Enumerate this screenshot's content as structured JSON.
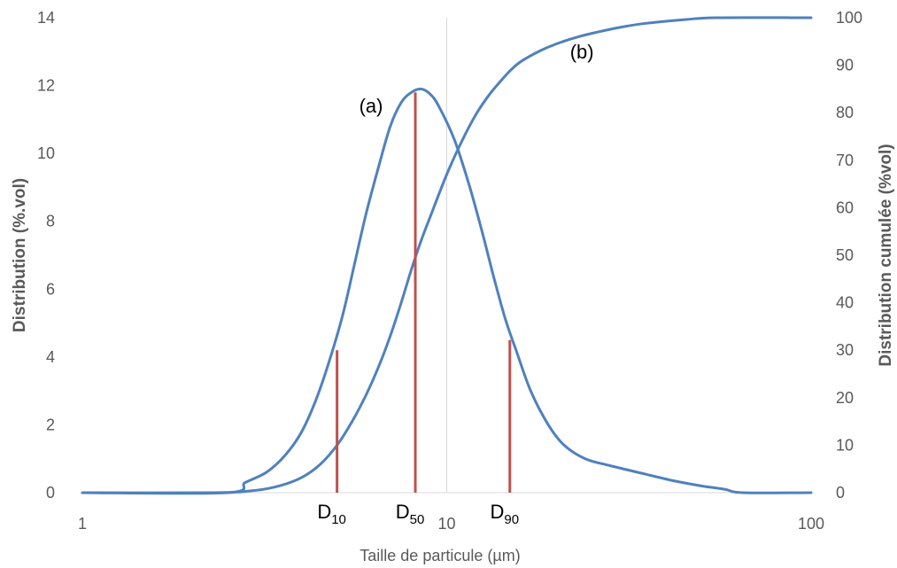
{
  "chart_data": {
    "type": "line",
    "xlabel": "Taille de particule (µm)",
    "ylabel": "Distribution  (%.vol)",
    "y2label": "Distribution cumulée (%vol)",
    "x_scale": "log",
    "xlim": [
      1,
      100
    ],
    "ylim": [
      0,
      14
    ],
    "y2lim": [
      0,
      100
    ],
    "x_ticks": [
      {
        "value": 1,
        "label": "1"
      },
      {
        "value": 10,
        "label": "10"
      },
      {
        "value": 100,
        "label": "100"
      }
    ],
    "y_ticks": [
      0,
      2,
      4,
      6,
      8,
      10,
      12,
      14
    ],
    "y2_ticks": [
      0,
      10,
      20,
      30,
      40,
      50,
      60,
      70,
      80,
      90,
      100
    ],
    "grid": {
      "vertical_at_x": [
        10
      ],
      "horizontal": false
    },
    "series": [
      {
        "name": "(a)",
        "axis": "left",
        "color": "#4f81bd",
        "points": [
          [
            1,
            0
          ],
          [
            2.5,
            0
          ],
          [
            2.8,
            0.3
          ],
          [
            3.2,
            0.6
          ],
          [
            3.6,
            1.1
          ],
          [
            4.0,
            1.8
          ],
          [
            4.4,
            2.8
          ],
          [
            4.8,
            4.0
          ],
          [
            5.2,
            5.3
          ],
          [
            5.6,
            6.8
          ],
          [
            6.0,
            8.2
          ],
          [
            6.5,
            9.6
          ],
          [
            7.0,
            10.8
          ],
          [
            7.5,
            11.5
          ],
          [
            8.0,
            11.8
          ],
          [
            8.5,
            11.9
          ],
          [
            9.0,
            11.75
          ],
          [
            9.5,
            11.4
          ],
          [
            10.5,
            10.4
          ],
          [
            11.5,
            9.1
          ],
          [
            12.5,
            7.7
          ],
          [
            13.5,
            6.3
          ],
          [
            14.5,
            5.1
          ],
          [
            15.5,
            4.2
          ],
          [
            17.0,
            3.0
          ],
          [
            19.0,
            2.0
          ],
          [
            21.0,
            1.4
          ],
          [
            24.0,
            1.0
          ],
          [
            28.0,
            0.8
          ],
          [
            35.0,
            0.55
          ],
          [
            42.0,
            0.35
          ],
          [
            50.0,
            0.2
          ],
          [
            58.0,
            0.1
          ],
          [
            65.0,
            0
          ],
          [
            100,
            0
          ]
        ]
      },
      {
        "name": "(b)",
        "axis": "right",
        "color": "#4f81bd",
        "points": [
          [
            1,
            0
          ],
          [
            2.3,
            0
          ],
          [
            3.0,
            0.5
          ],
          [
            3.5,
            1.5
          ],
          [
            4.0,
            3.2
          ],
          [
            4.5,
            6.0
          ],
          [
            5.0,
            10.0
          ],
          [
            5.5,
            15.0
          ],
          [
            6.0,
            20.5
          ],
          [
            6.5,
            26.5
          ],
          [
            7.0,
            33.0
          ],
          [
            7.5,
            40.0
          ],
          [
            8.0,
            47.0
          ],
          [
            8.5,
            53.0
          ],
          [
            9.0,
            58.0
          ],
          [
            10.0,
            67.0
          ],
          [
            11.0,
            74.0
          ],
          [
            12.0,
            79.5
          ],
          [
            13.0,
            83.5
          ],
          [
            14.0,
            86.5
          ],
          [
            15.0,
            89.0
          ],
          [
            16.0,
            90.8
          ],
          [
            18.0,
            93.0
          ],
          [
            20.0,
            94.5
          ],
          [
            23.0,
            96.0
          ],
          [
            26.0,
            97.0
          ],
          [
            30.0,
            98.0
          ],
          [
            35.0,
            98.8
          ],
          [
            45.0,
            99.6
          ],
          [
            55.0,
            100
          ],
          [
            100,
            100
          ]
        ]
      }
    ],
    "markers": [
      {
        "label": "D",
        "sub": "10",
        "x": 5.0,
        "y": 4.2
      },
      {
        "label": "D",
        "sub": "50",
        "x": 8.2,
        "y": 11.8
      },
      {
        "label": "D",
        "sub": "90",
        "x": 14.9,
        "y": 4.5
      }
    ],
    "marker_color": "#c0504d",
    "annotations": [
      {
        "text": "(a)",
        "x": 6.2,
        "y": 11.2
      },
      {
        "text": "(b)",
        "x": 23.5,
        "y": 12.8
      }
    ]
  }
}
